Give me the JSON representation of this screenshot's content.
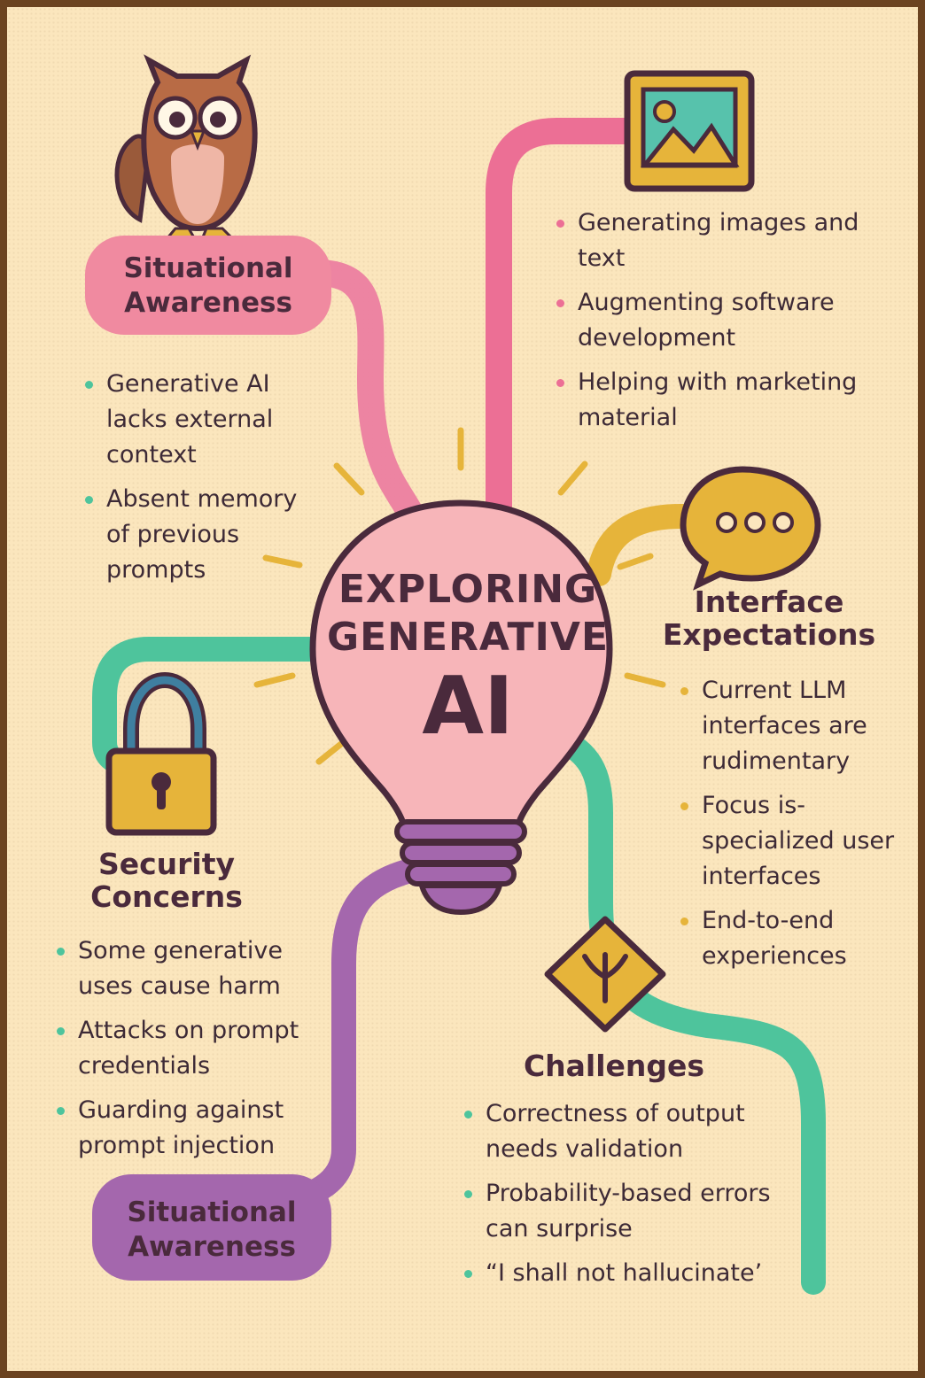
{
  "title": {
    "line1": "EXPLORING",
    "line2": "GENERATIVE",
    "line3": "AI"
  },
  "colors": {
    "pink": "#ec6f95",
    "teal": "#4ec49c",
    "gold": "#e6b43a",
    "purple": "#a467ad",
    "cream": "#fbe6bd",
    "border": "#6b4320"
  },
  "top_left": {
    "pill_line1": "Situational",
    "pill_line2": "Awareness",
    "icon": "owl-icon",
    "bullets": [
      "Generative AI lacks external context",
      "Absent memory of previous prompts"
    ]
  },
  "top_right": {
    "icon": "image-icon",
    "bullets": [
      "Generating images and text",
      "Augmenting software development",
      "Helping with marketing material"
    ]
  },
  "interface": {
    "icon": "speech-bubble-icon",
    "heading_line1": "Interface",
    "heading_line2": "Expectations",
    "bullets": [
      "Current LLM interfaces are rudimentary",
      "Focus is-specialized user interfaces",
      "End-to-end experiences"
    ]
  },
  "security": {
    "icon": "padlock-icon",
    "heading_line1": "Security",
    "heading_line2": "Concerns",
    "bullets": [
      "Some generative uses cause harm",
      "Attacks on prompt credentials",
      "Guarding against prompt injection"
    ]
  },
  "challenges": {
    "icon": "warning-sign-icon",
    "heading": "Challenges",
    "bullets": [
      "Correctness of output needs validation",
      "Probability-based errors can surprise",
      "“I shall not hallucinate’"
    ]
  },
  "bottom_left": {
    "pill_line1": "Situational",
    "pill_line2": "Awareness"
  }
}
